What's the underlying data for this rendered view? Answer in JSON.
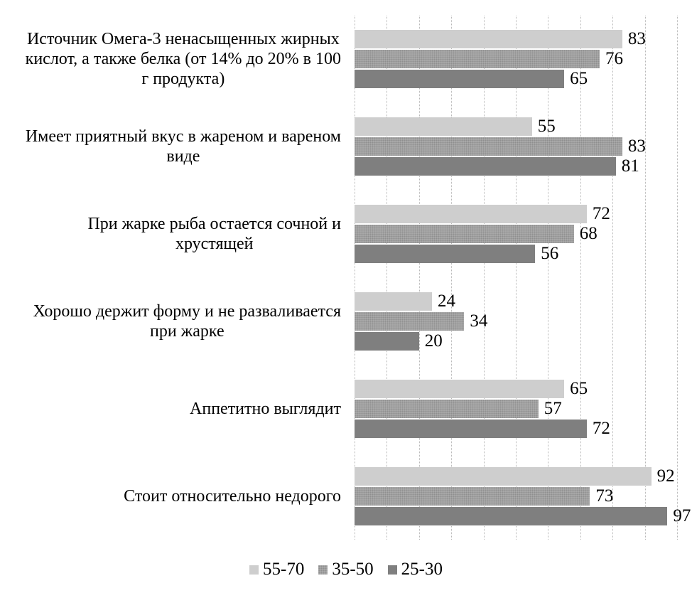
{
  "chart_data": {
    "type": "bar",
    "orientation": "horizontal",
    "title": "",
    "xlabel": "",
    "ylabel": "",
    "xlim": [
      0,
      100
    ],
    "gridline_step": 10,
    "grid": true,
    "legend_position": "bottom",
    "background": "#ffffff",
    "text_color": "#000000",
    "gridline_color": "#b8b8b8",
    "categories": [
      "Источник Омега-3 ненасыщенных жирных\nкислот, а также белка (от 14% до 20% в 100\nг продукта)",
      "Имеет приятный вкус в жареном и вареном\nвиде",
      "При жарке рыба остается сочной и\nхрустящей",
      "Хорошо держит форму и не разваливается\nпри жарке",
      "Аппетитно выглядит",
      "Стоит относительно недорого"
    ],
    "series": [
      {
        "name": "55-70",
        "color": "#cecece",
        "pattern": "solid",
        "values": [
          83,
          55,
          72,
          24,
          65,
          92
        ]
      },
      {
        "name": "35-50",
        "color": "#a8a8a8",
        "pattern": "stipple",
        "values": [
          76,
          83,
          68,
          34,
          57,
          73
        ]
      },
      {
        "name": "25-30",
        "color": "#7f7f7f",
        "pattern": "solid",
        "values": [
          65,
          81,
          56,
          20,
          72,
          97
        ]
      }
    ]
  }
}
